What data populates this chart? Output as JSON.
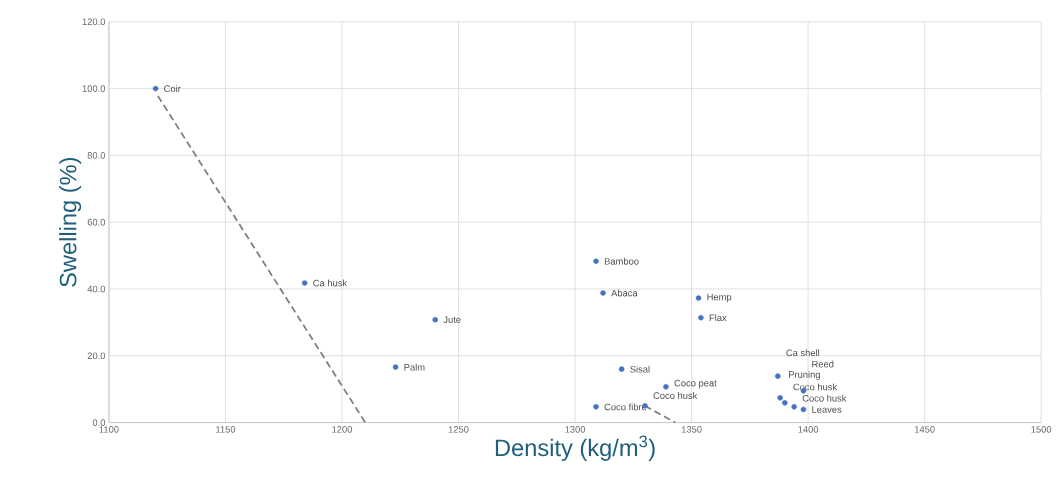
{
  "chart_data": {
    "type": "scatter",
    "xlabel": "Density (kg/m$^{3}$)",
    "ylabel": "Swelling (%)",
    "xlim": [
      1100,
      1500
    ],
    "xticks": [
      1100,
      1150,
      1200,
      1250,
      1300,
      1350,
      1400,
      1450,
      1500
    ],
    "ylim": [
      0,
      120
    ],
    "yticks": [
      {
        "value": 0,
        "label": "0.0"
      },
      {
        "value": 20,
        "label": "20.0"
      },
      {
        "value": 40,
        "label": "40.0"
      },
      {
        "value": 60,
        "label": "60.0"
      },
      {
        "value": 80,
        "label": "80.0"
      },
      {
        "value": 100,
        "label": "100.0"
      },
      {
        "value": 120,
        "label": "120.0"
      }
    ],
    "grid": true,
    "series": [
      {
        "color": "#4472c4",
        "marker": "circle",
        "x": [
          1120,
          1184,
          1240,
          1223,
          1309,
          1312,
          1353,
          1354,
          1320,
          1339,
          1309,
          1330,
          1387,
          1398,
          1388,
          1390,
          1394,
          1398
        ],
        "values": [
          100,
          41.8,
          30.8,
          16.6,
          48.3,
          38.8,
          37.3,
          31.4,
          16.0,
          10.7,
          4.7,
          5.0,
          13.9,
          9.5,
          7.4,
          5.9,
          4.7,
          3.9
        ]
      },
      {
        "type": "line",
        "color": "#7f7f7f",
        "marker": "none",
        "line_style": "dashed",
        "x": [
          1121,
          1210
        ],
        "values": [
          97.8,
          0
        ]
      },
      {
        "type": "line",
        "color": "#7f7f7f",
        "marker": "none",
        "line_style": "dashed",
        "x": [
          1330,
          1343
        ],
        "values": [
          5.0,
          0
        ]
      }
    ],
    "annotations": [
      {
        "text": "Coir",
        "x": 1120,
        "y": 100
      },
      {
        "text": "Ca husk",
        "x": 1184,
        "y": 41.8
      },
      {
        "text": "Jute",
        "x": 1240,
        "y": 30.8
      },
      {
        "text": "Palm",
        "x": 1223,
        "y": 16.6
      },
      {
        "text": "Bamboo",
        "x": 1309,
        "y": 48.3
      },
      {
        "text": "Abaca",
        "x": 1312,
        "y": 38.8
      },
      {
        "text": "Hemp",
        "x": 1353,
        "y": 37.3
      },
      {
        "text": "Flax",
        "x": 1354,
        "y": 31.4
      },
      {
        "text": "Sisal",
        "x": 1320,
        "y": 16.0
      },
      {
        "text": "Coco peat",
        "x": 1339,
        "y": 10.7
      },
      {
        "text": "Coco fibre",
        "x": 1309,
        "y": 4.7
      },
      {
        "text": "Coco husk",
        "x": 1330,
        "y": 5.0
      },
      {
        "text": "Ca shell",
        "x": 1387,
        "y": 13.9
      },
      {
        "text": "Reed",
        "x": 1398,
        "y": 9.5
      },
      {
        "text": "Pruning",
        "x": 1388,
        "y": 7.4
      },
      {
        "text": "Coco husk",
        "x": 1390,
        "y": 5.9
      },
      {
        "text": "Coco husk",
        "x": 1394,
        "y": 4.7
      },
      {
        "text": "Leaves",
        "x": 1398,
        "y": 3.9
      }
    ]
  }
}
